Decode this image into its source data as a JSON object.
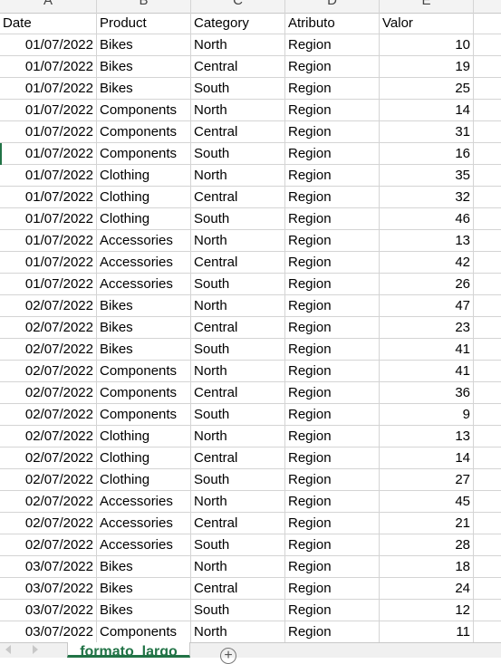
{
  "columns": [
    "A",
    "B",
    "C",
    "D",
    "E"
  ],
  "header": {
    "date": "Date",
    "product": "Product",
    "category": "Category",
    "attr": "Atributo",
    "value": "Valor"
  },
  "rows": [
    {
      "date": "01/07/2022",
      "product": "Bikes",
      "category": "North",
      "attr": "Region",
      "value": "10"
    },
    {
      "date": "01/07/2022",
      "product": "Bikes",
      "category": "Central",
      "attr": "Region",
      "value": "19"
    },
    {
      "date": "01/07/2022",
      "product": "Bikes",
      "category": "South",
      "attr": "Region",
      "value": "25"
    },
    {
      "date": "01/07/2022",
      "product": "Components",
      "category": "North",
      "attr": "Region",
      "value": "14"
    },
    {
      "date": "01/07/2022",
      "product": "Components",
      "category": "Central",
      "attr": "Region",
      "value": "31"
    },
    {
      "date": "01/07/2022",
      "product": "Components",
      "category": "South",
      "attr": "Region",
      "value": "16"
    },
    {
      "date": "01/07/2022",
      "product": "Clothing",
      "category": "North",
      "attr": "Region",
      "value": "35"
    },
    {
      "date": "01/07/2022",
      "product": "Clothing",
      "category": "Central",
      "attr": "Region",
      "value": "32"
    },
    {
      "date": "01/07/2022",
      "product": "Clothing",
      "category": "South",
      "attr": "Region",
      "value": "46"
    },
    {
      "date": "01/07/2022",
      "product": "Accessories",
      "category": "North",
      "attr": "Region",
      "value": "13"
    },
    {
      "date": "01/07/2022",
      "product": "Accessories",
      "category": "Central",
      "attr": "Region",
      "value": "42"
    },
    {
      "date": "01/07/2022",
      "product": "Accessories",
      "category": "South",
      "attr": "Region",
      "value": "26"
    },
    {
      "date": "02/07/2022",
      "product": "Bikes",
      "category": "North",
      "attr": "Region",
      "value": "47"
    },
    {
      "date": "02/07/2022",
      "product": "Bikes",
      "category": "Central",
      "attr": "Region",
      "value": "23"
    },
    {
      "date": "02/07/2022",
      "product": "Bikes",
      "category": "South",
      "attr": "Region",
      "value": "41"
    },
    {
      "date": "02/07/2022",
      "product": "Components",
      "category": "North",
      "attr": "Region",
      "value": "41"
    },
    {
      "date": "02/07/2022",
      "product": "Components",
      "category": "Central",
      "attr": "Region",
      "value": "36"
    },
    {
      "date": "02/07/2022",
      "product": "Components",
      "category": "South",
      "attr": "Region",
      "value": "9"
    },
    {
      "date": "02/07/2022",
      "product": "Clothing",
      "category": "North",
      "attr": "Region",
      "value": "13"
    },
    {
      "date": "02/07/2022",
      "product": "Clothing",
      "category": "Central",
      "attr": "Region",
      "value": "14"
    },
    {
      "date": "02/07/2022",
      "product": "Clothing",
      "category": "South",
      "attr": "Region",
      "value": "27"
    },
    {
      "date": "02/07/2022",
      "product": "Accessories",
      "category": "North",
      "attr": "Region",
      "value": "45"
    },
    {
      "date": "02/07/2022",
      "product": "Accessories",
      "category": "Central",
      "attr": "Region",
      "value": "21"
    },
    {
      "date": "02/07/2022",
      "product": "Accessories",
      "category": "South",
      "attr": "Region",
      "value": "28"
    },
    {
      "date": "03/07/2022",
      "product": "Bikes",
      "category": "North",
      "attr": "Region",
      "value": "18"
    },
    {
      "date": "03/07/2022",
      "product": "Bikes",
      "category": "Central",
      "attr": "Region",
      "value": "24"
    },
    {
      "date": "03/07/2022",
      "product": "Bikes",
      "category": "South",
      "attr": "Region",
      "value": "12"
    },
    {
      "date": "03/07/2022",
      "product": "Components",
      "category": "North",
      "attr": "Region",
      "value": "11"
    }
  ],
  "sheet_tab": {
    "label": "formato_largo"
  },
  "add_sheet": {
    "symbol": "+"
  },
  "colors": {
    "accent": "#217346",
    "gridline": "#d4d4d4"
  }
}
